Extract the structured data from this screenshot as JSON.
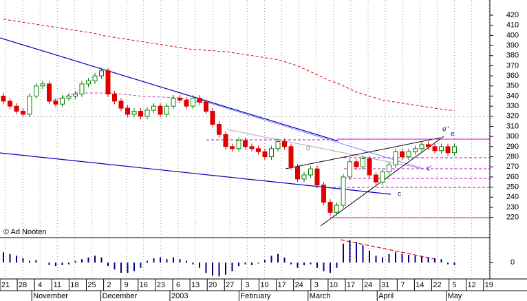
{
  "chart_data": {
    "type": "candlestick",
    "watermark": "© Ad Nooten",
    "day_labels": [
      "21",
      "28",
      "4",
      "11",
      "18",
      "25",
      "2",
      "9",
      "16",
      "23",
      "6",
      "13",
      "20",
      "27",
      "3",
      "10",
      "17",
      "24",
      "3",
      "10",
      "17",
      "24",
      "31",
      "7",
      "14",
      "22",
      "5",
      "12",
      "19"
    ],
    "month_labels": [
      null,
      null,
      "November",
      null,
      null,
      null,
      "December",
      null,
      null,
      null,
      "2003",
      null,
      null,
      null,
      "February",
      null,
      null,
      null,
      "March",
      null,
      null,
      null,
      "April",
      null,
      null,
      null,
      "May",
      null,
      null
    ],
    "ylim": [
      200,
      435
    ],
    "yticks": [
      420,
      410,
      400,
      390,
      380,
      370,
      360,
      350,
      340,
      330,
      320,
      310,
      300,
      290,
      280,
      270,
      260,
      250,
      240,
      230,
      220
    ],
    "up_color": "#008000",
    "down_color": "#e00000",
    "candles": {
      "open": [
        340,
        335,
        330,
        325,
        322,
        340,
        350,
        352,
        335,
        332,
        338,
        340,
        342,
        352,
        355,
        360,
        365,
        342,
        335,
        328,
        322,
        325,
        320,
        326,
        330,
        322,
        330,
        338,
        336,
        330,
        338,
        334,
        325,
        312,
        302,
        290,
        288,
        296,
        290,
        288,
        285,
        280,
        288,
        295,
        290,
        270,
        258,
        262,
        268,
        252,
        235,
        225,
        232,
        260,
        275,
        270,
        278,
        262,
        255,
        265,
        272,
        285,
        280,
        285,
        288,
        292,
        290,
        286,
        290,
        284
      ],
      "high": [
        343,
        338,
        333,
        328,
        343,
        353,
        355,
        355,
        338,
        341,
        343,
        345,
        355,
        358,
        363,
        368,
        368,
        345,
        338,
        331,
        328,
        328,
        329,
        333,
        333,
        333,
        341,
        341,
        339,
        341,
        341,
        337,
        328,
        315,
        305,
        293,
        299,
        299,
        293,
        291,
        288,
        291,
        298,
        298,
        293,
        273,
        265,
        271,
        271,
        255,
        238,
        235,
        263,
        278,
        278,
        281,
        281,
        265,
        268,
        275,
        288,
        288,
        288,
        291,
        295,
        295,
        293,
        293,
        293,
        293
      ],
      "low": [
        332,
        327,
        322,
        319,
        319,
        337,
        347,
        332,
        329,
        329,
        335,
        337,
        339,
        349,
        352,
        357,
        339,
        332,
        325,
        319,
        319,
        317,
        317,
        323,
        319,
        319,
        327,
        333,
        327,
        327,
        331,
        322,
        309,
        299,
        287,
        285,
        285,
        287,
        285,
        282,
        277,
        277,
        285,
        287,
        267,
        255,
        255,
        259,
        249,
        232,
        222,
        222,
        229,
        257,
        267,
        267,
        259,
        252,
        252,
        262,
        269,
        277,
        277,
        282,
        285,
        287,
        283,
        283,
        281,
        281
      ],
      "close": [
        335,
        330,
        325,
        322,
        340,
        350,
        352,
        335,
        332,
        338,
        340,
        342,
        352,
        355,
        360,
        365,
        342,
        335,
        328,
        322,
        325,
        320,
        326,
        330,
        322,
        330,
        338,
        336,
        330,
        338,
        334,
        325,
        312,
        302,
        290,
        288,
        296,
        290,
        288,
        285,
        280,
        288,
        295,
        290,
        270,
        258,
        262,
        268,
        252,
        235,
        225,
        232,
        260,
        275,
        270,
        278,
        262,
        255,
        265,
        272,
        285,
        280,
        285,
        288,
        292,
        290,
        286,
        290,
        284,
        290
      ]
    },
    "moving_average": {
      "color": "#e00000",
      "values": [
        416,
        415,
        414,
        413,
        412,
        411,
        410,
        409,
        408,
        407,
        406,
        405,
        404,
        403,
        402,
        400,
        399,
        398,
        397,
        396,
        395,
        394,
        393,
        392,
        391,
        390,
        389,
        388,
        387,
        386,
        386,
        385,
        385,
        384,
        384,
        383,
        382,
        381,
        380,
        379,
        378,
        377,
        376,
        374,
        372,
        370,
        367,
        364,
        361,
        358,
        355,
        353,
        350,
        347,
        344,
        342,
        340,
        338,
        336,
        335,
        334,
        333,
        332,
        331,
        330,
        329,
        328,
        327,
        326,
        326
      ]
    },
    "annotations": [
      "e''",
      "e",
      "c'",
      "c",
      "0"
    ],
    "indicator": {
      "color": "#000080",
      "ylim": [
        -19,
        29
      ],
      "yticks": [
        0
      ],
      "values": [
        12,
        10,
        8,
        5,
        2,
        3,
        0,
        -3,
        -4,
        -3,
        -2,
        2,
        4,
        6,
        8,
        6,
        -4,
        -8,
        -12,
        -12,
        -10,
        -6,
        2,
        5,
        6,
        4,
        6,
        4,
        2,
        -2,
        -6,
        -12,
        -15,
        -16,
        -14,
        -10,
        -4,
        -2,
        -3,
        -1,
        3,
        8,
        10,
        6,
        -2,
        -6,
        -3,
        -2,
        -6,
        -10,
        -12,
        -6,
        22,
        26,
        24,
        20,
        14,
        8,
        6,
        10,
        12,
        10,
        9,
        8,
        7,
        6,
        5,
        4,
        -2,
        -3
      ]
    }
  }
}
